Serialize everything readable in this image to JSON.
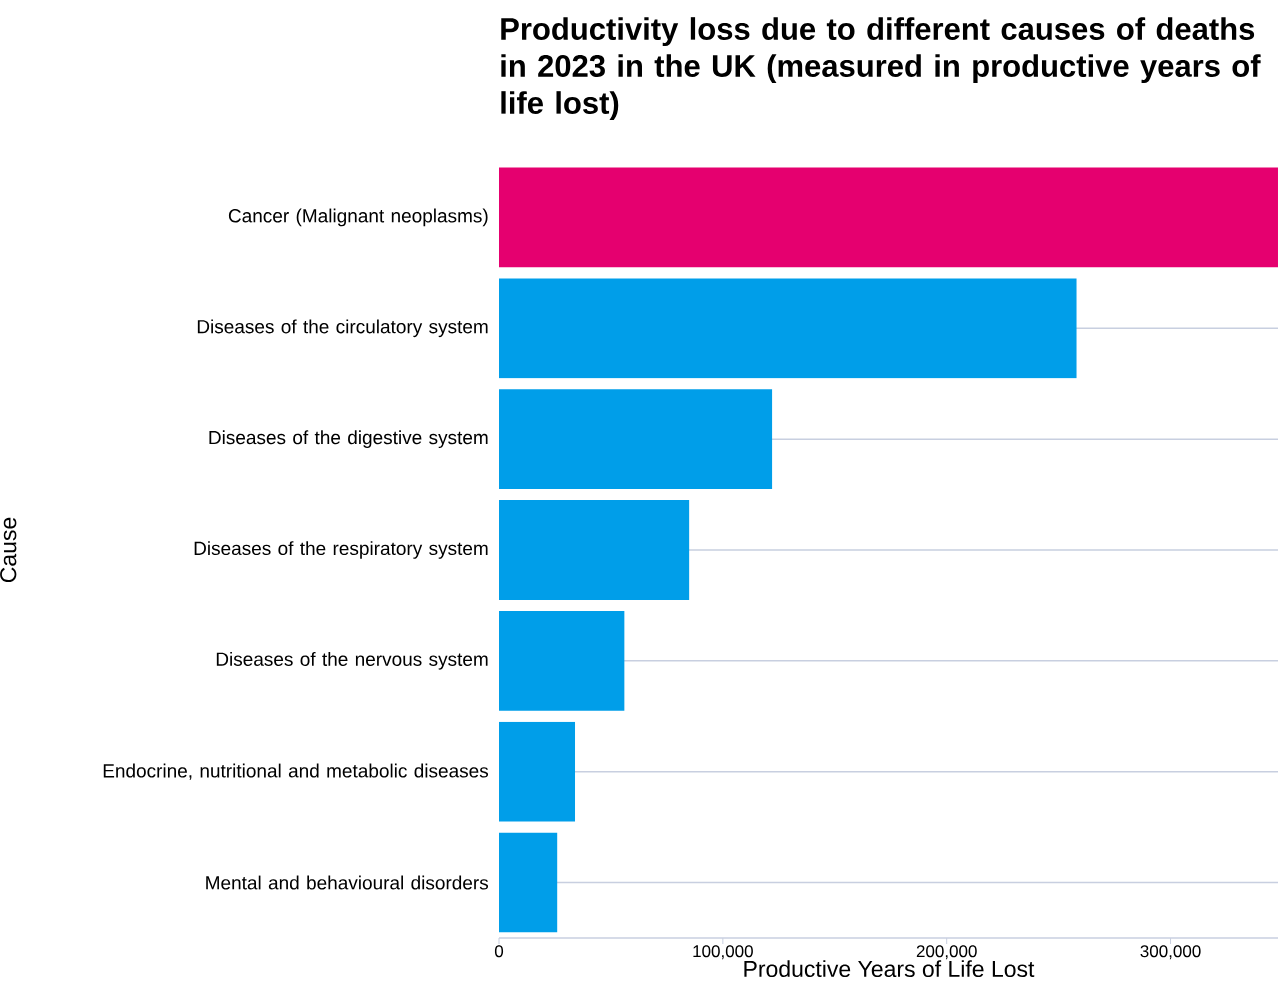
{
  "chart_data": {
    "type": "bar",
    "orientation": "horizontal",
    "title": "Productivity loss due to different causes of deaths in 2023 in the UK (measured in productive years of life lost)",
    "xlabel": "Productive Years of Life Lost",
    "ylabel": "Cause",
    "categories": [
      "Cancer (Malignant neoplasms)",
      "Diseases of the circulatory system",
      "Diseases of the digestive system",
      "Diseases of the respiratory system",
      "Diseases of the nervous system",
      "Endocrine, nutritional and metabolic diseases",
      "Mental and behavioural disorders"
    ],
    "values": [
      348000,
      258000,
      122000,
      85000,
      56000,
      34000,
      26000
    ],
    "colors": [
      "#e5006f",
      "#009ee9",
      "#009ee9",
      "#009ee9",
      "#009ee9",
      "#009ee9",
      "#009ee9"
    ],
    "xlim": [
      0,
      348000
    ],
    "xticks": [
      0,
      {
        "value": 100000,
        "label": "100,000"
      },
      {
        "value": 200000,
        "label": "200,000"
      },
      {
        "value": 300000,
        "label": "300,000"
      }
    ],
    "grid": "y"
  }
}
